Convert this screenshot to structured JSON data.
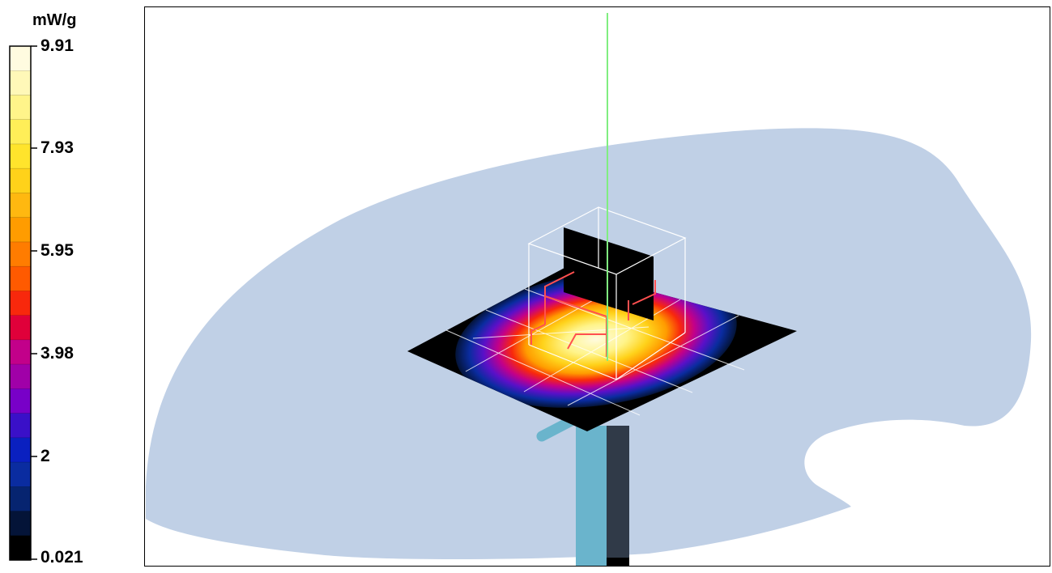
{
  "colorbar": {
    "unit": "mW/g",
    "ticks": [
      "9.91",
      "7.93",
      "5.95",
      "3.98",
      "2",
      "0.021"
    ],
    "colors": [
      "#fffbe0",
      "#fff8b8",
      "#fff48a",
      "#ffee58",
      "#ffe42c",
      "#ffd21a",
      "#ffb810",
      "#ff9c00",
      "#ff7c00",
      "#ff5a00",
      "#f8280c",
      "#e0003a",
      "#c2008a",
      "#a000a8",
      "#7800c8",
      "#3a10c8",
      "#0a20c0",
      "#0a2ca0",
      "#062470",
      "#041438",
      "#000000"
    ]
  },
  "scene": {
    "phantom_color": "#c0d0e6",
    "probe_line_color": "#80ee80",
    "antenna_color": "#ff4040",
    "grid_line_color": "#ffffff",
    "support_color": "#5ab4cc"
  }
}
